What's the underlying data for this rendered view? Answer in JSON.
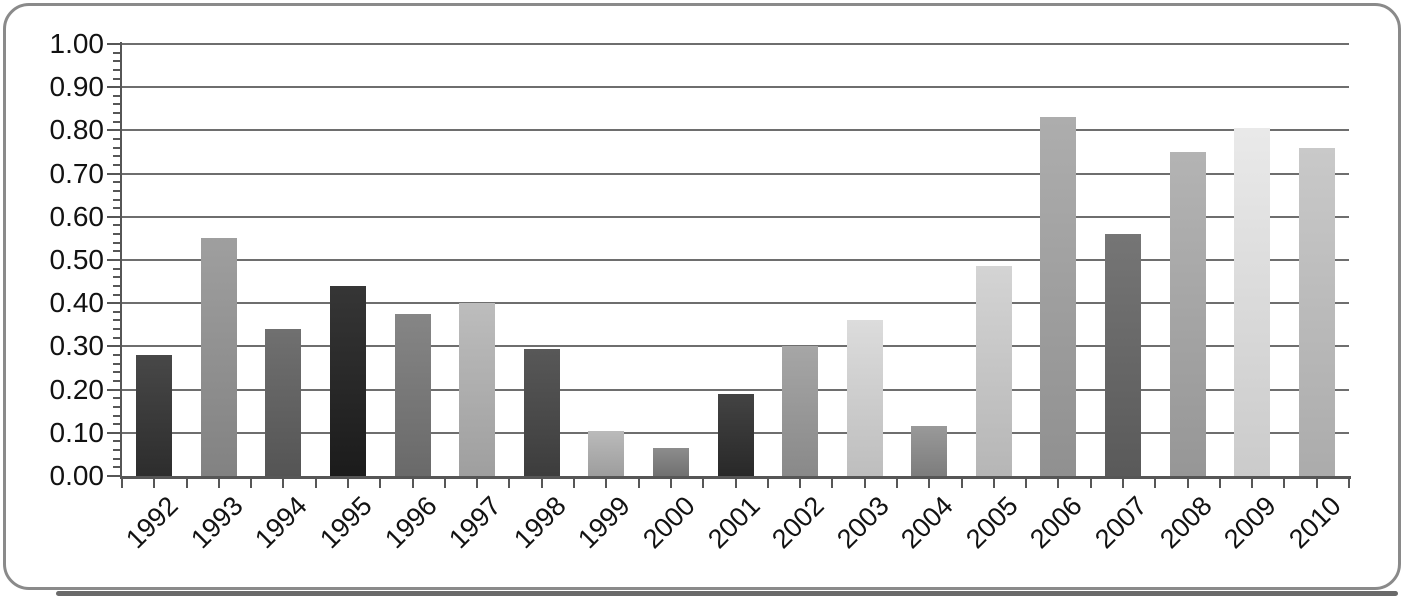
{
  "chart_data": {
    "type": "bar",
    "title": "",
    "xlabel": "",
    "ylabel": "",
    "categories": [
      "1992",
      "1993",
      "1994",
      "1995",
      "1996",
      "1997",
      "1998",
      "1999",
      "2000",
      "2001",
      "2002",
      "2003",
      "2004",
      "2005",
      "2006",
      "2007",
      "2008",
      "2009",
      "2010"
    ],
    "values": [
      0.28,
      0.55,
      0.34,
      0.44,
      0.375,
      0.4,
      0.295,
      0.105,
      0.065,
      0.19,
      0.3,
      0.36,
      0.115,
      0.485,
      0.83,
      0.56,
      0.75,
      0.805,
      0.76
    ],
    "bar_colors": [
      "#333333",
      "#949494",
      "#606060",
      "#1f1f1f",
      "#787878",
      "#b5b5b5",
      "#454545",
      "#b3b3b3",
      "#808080",
      "#2e2e2e",
      "#9c9c9c",
      "#d8d8d8",
      "#8e8e8e",
      "#cfcfcf",
      "#a4a4a4",
      "#666666",
      "#ababab",
      "#e7e7e7",
      "#c3c3c3"
    ],
    "ylim": [
      0,
      1
    ],
    "ytick_interval": 0.1,
    "ytick_labels": [
      "1.00",
      "0.90",
      "0.80",
      "0.70",
      "0.60",
      "0.50",
      "0.40",
      "0.30",
      "0.20",
      "0.10",
      "0.00"
    ],
    "grid": "horizontal",
    "gridline_color": "#6e6e6e",
    "axis_color": "#565656",
    "legend": "none"
  }
}
